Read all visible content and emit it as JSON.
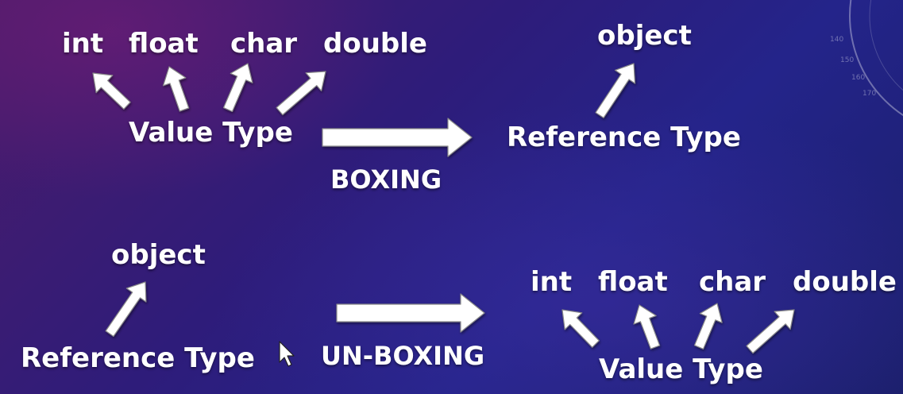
{
  "boxing": {
    "value_types": [
      "int",
      "float",
      "char",
      "double"
    ],
    "value_type_label": "Value Type",
    "object_label": "object",
    "reference_type_label": "Reference Type",
    "operation_label": "BOXING"
  },
  "unboxing": {
    "object_label": "object",
    "reference_type_label": "Reference Type",
    "operation_label": "UN-BOXING",
    "value_types": [
      "int",
      "float",
      "char",
      "double"
    ],
    "value_type_label": "Value Type"
  },
  "colors": {
    "text": "#ffffff",
    "arrow_fill": "#ffffff",
    "arrow_stroke": "#8a8a8a"
  },
  "icons": {
    "cursor": "mouse-pointer-icon",
    "decoration": "dial-arc-decoration"
  }
}
